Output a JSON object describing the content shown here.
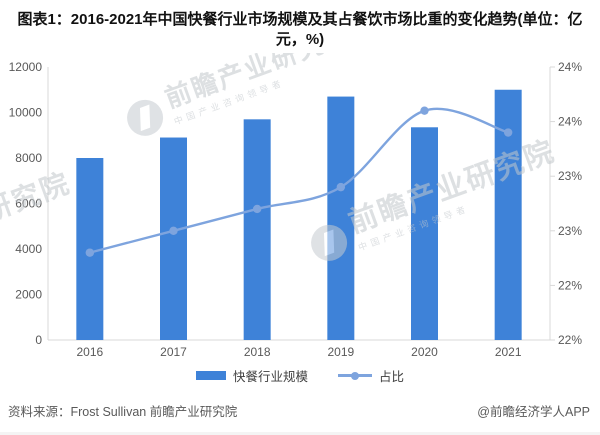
{
  "title": "图表1：2016-2021年中国快餐行业市场规模及其占餐饮市场比重的变化趋势(单位：亿元，%)",
  "chart_data": {
    "type": "combo-bar-line",
    "categories": [
      "2016",
      "2017",
      "2018",
      "2019",
      "2020",
      "2021"
    ],
    "series": [
      {
        "name": "快餐行业规模",
        "type": "bar",
        "axis": "left",
        "values": [
          8000,
          8900,
          9700,
          10700,
          9350,
          11000
        ],
        "color": "#3e82d8"
      },
      {
        "name": "占比",
        "type": "line",
        "axis": "right",
        "values": [
          22.8,
          23.0,
          23.2,
          23.4,
          24.1,
          23.9
        ],
        "color": "#7ea4de"
      }
    ],
    "left_axis": {
      "min": 0,
      "max": 12000,
      "step": 2000,
      "tick_labels": [
        "0",
        "2000",
        "4000",
        "6000",
        "8000",
        "10000",
        "12000"
      ]
    },
    "right_axis": {
      "min": 22,
      "max": 24.5,
      "step": 0.5,
      "tick_labels": [
        "22%",
        "22%",
        "23%",
        "23%",
        "24%",
        "24%"
      ]
    },
    "grid": false,
    "legend_position": "bottom",
    "axis_line_color": "#d9d9d9"
  },
  "watermark": {
    "text": "前瞻产业研究院",
    "subtext": "中国产业咨询领导者",
    "partial": "研究院"
  },
  "footer": {
    "source": "资料来源：Frost Sullivan 前瞻产业研究院",
    "credit": "@前瞻经济学人APP"
  }
}
